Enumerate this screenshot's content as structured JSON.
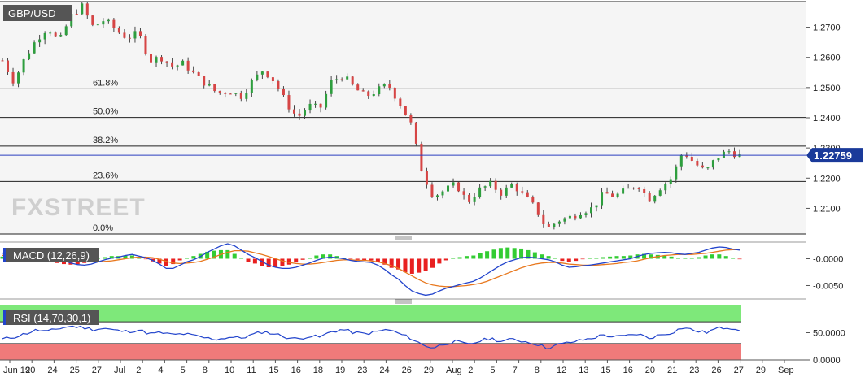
{
  "chart_data": {
    "type": "candlestick",
    "title": "GBP/USD",
    "watermark": "FXSTREET",
    "current_price": "1.22759",
    "price_axis": {
      "ylim": [
        1.2015,
        1.2785
      ],
      "ticks": [
        "1.2700",
        "1.2600",
        "1.2500",
        "1.2400",
        "1.2300",
        "1.2200",
        "1.2100"
      ]
    },
    "x_labels": [
      "Jun 19",
      "20",
      "24",
      "25",
      "27",
      "Jul",
      "2",
      "4",
      "5",
      "8",
      "10",
      "11",
      "15",
      "16",
      "18",
      "19",
      "23",
      "24",
      "26",
      "29",
      "Aug",
      "2",
      "5",
      "7",
      "8",
      "12",
      "13",
      "15",
      "16",
      "20",
      "21",
      "23",
      "26",
      "27",
      "29",
      "Sep"
    ],
    "fibonacci": [
      {
        "label": "61.8%",
        "value": 1.2496
      },
      {
        "label": "50.0%",
        "value": 1.2401
      },
      {
        "label": "38.2%",
        "value": 1.2306
      },
      {
        "label": "23.6%",
        "value": 1.2189
      },
      {
        "label": "0.0%",
        "value": 1.2015
      }
    ],
    "price_close_path": [
      1.259,
      1.252,
      1.26,
      1.266,
      1.27,
      1.265,
      1.2735,
      1.277,
      1.27,
      1.2725,
      1.269,
      1.2665,
      1.268,
      1.259,
      1.26,
      1.257,
      1.258,
      1.254,
      1.251,
      1.248,
      1.249,
      1.247,
      1.252,
      1.256,
      1.252,
      1.245,
      1.24,
      1.244,
      1.243,
      1.252,
      1.254,
      1.25,
      1.247,
      1.249,
      1.251,
      1.245,
      1.238,
      1.222,
      1.214,
      1.216,
      1.218,
      1.212,
      1.216,
      1.218,
      1.215,
      1.218,
      1.214,
      1.21,
      1.203,
      1.206,
      1.207,
      1.209,
      1.21,
      1.215,
      1.214,
      1.216,
      1.218,
      1.213,
      1.217,
      1.22,
      1.229,
      1.225,
      1.222,
      1.227,
      1.229,
      1.22759
    ],
    "macd": {
      "label": "MACD (12,26,9)",
      "ylim": [
        -0.0072,
        0.0028
      ],
      "ticks": [
        "-0.0000",
        "-0.0050"
      ],
      "macd_line": [
        0.001,
        0.0015,
        0.0018,
        0.0019,
        0.0018,
        0.0016,
        0.0012,
        0.0006,
        0.0002,
        -0.0003,
        -0.0008,
        -0.0011,
        -0.0012,
        -0.001,
        -0.0006,
        -0.0002,
        0.0001,
        0.0003,
        0.0006,
        0.0008,
        0.0005,
        0.0002,
        -0.0003,
        -0.001,
        -0.0018,
        -0.0018,
        -0.0012,
        -0.0006,
        -0.0002,
        0.0004,
        0.0012,
        0.0018,
        0.0024,
        0.0028,
        0.0024,
        0.0016,
        0.0008,
        0.0002,
        -0.0005,
        -0.0012,
        -0.0016,
        -0.0018,
        -0.0018,
        -0.0016,
        -0.0012,
        -0.0008,
        -0.0003,
        0.0001,
        0.0003,
        0.0002,
        0.0,
        -0.0003,
        -0.0005,
        -0.0006,
        -0.0007,
        -0.0012,
        -0.002,
        -0.003,
        -0.0038,
        -0.005,
        -0.006,
        -0.0065,
        -0.0068,
        -0.0066,
        -0.006,
        -0.0055,
        -0.0052,
        -0.0048,
        -0.0045,
        -0.0042,
        -0.0036,
        -0.0028,
        -0.002,
        -0.0012,
        -0.0006,
        -0.0002,
        0.0002,
        0.0003,
        0.0002,
        0.0,
        -0.0002,
        -0.0006,
        -0.0012,
        -0.0016,
        -0.0015,
        -0.0013,
        -0.0012,
        -0.001,
        -0.0008,
        -0.0006,
        -0.0004,
        -0.0002,
        0.0,
        0.0004,
        0.0008,
        0.001,
        0.0011,
        0.0012,
        0.0011,
        0.0009,
        0.0008,
        0.001,
        0.0012,
        0.0016,
        0.002,
        0.0022,
        0.0021,
        0.0018,
        0.0016
      ],
      "signal_line": [
        0.0006,
        0.0008,
        0.0011,
        0.0013,
        0.0015,
        0.0015,
        0.0014,
        0.0012,
        0.001,
        0.0007,
        0.0003,
        -0.0001,
        -0.0004,
        -0.0006,
        -0.0006,
        -0.0005,
        -0.0004,
        -0.0002,
        0.0,
        0.0002,
        0.0003,
        0.0003,
        0.0002,
        -0.0001,
        -0.0005,
        -0.0008,
        -0.0009,
        -0.0008,
        -0.0007,
        -0.0005,
        -0.0001,
        0.0003,
        0.0008,
        0.0012,
        0.0015,
        0.0015,
        0.0014,
        0.0011,
        0.0008,
        0.0004,
        0.0,
        -0.0004,
        -0.0007,
        -0.0009,
        -0.001,
        -0.001,
        -0.0009,
        -0.0007,
        -0.0005,
        -0.0003,
        -0.0002,
        -0.0002,
        -0.0003,
        -0.0003,
        -0.0004,
        -0.0006,
        -0.0009,
        -0.0013,
        -0.0018,
        -0.0025,
        -0.0032,
        -0.0039,
        -0.0045,
        -0.0049,
        -0.0051,
        -0.0052,
        -0.0052,
        -0.0051,
        -0.005,
        -0.0048,
        -0.0046,
        -0.0042,
        -0.0037,
        -0.0032,
        -0.0027,
        -0.0022,
        -0.0017,
        -0.0013,
        -0.001,
        -0.0008,
        -0.0007,
        -0.0007,
        -0.0008,
        -0.001,
        -0.0011,
        -0.0012,
        -0.0012,
        -0.0012,
        -0.0011,
        -0.001,
        -0.0009,
        -0.0007,
        -0.0006,
        -0.0004,
        -0.0001,
        0.0002,
        0.0004,
        0.0006,
        0.0007,
        0.0008,
        0.0008,
        0.0008,
        0.0009,
        0.001,
        0.0012,
        0.0014,
        0.0016,
        0.0017,
        0.0017
      ]
    },
    "rsi": {
      "label": "RSI (14,70,30,1)",
      "ylim": [
        0,
        100
      ],
      "overbought": 70,
      "oversold": 30,
      "ticks": [
        "50.0000",
        "0.0000"
      ],
      "values": [
        38,
        42,
        48,
        55,
        52,
        58,
        62,
        60,
        56,
        58,
        54,
        52,
        55,
        48,
        50,
        46,
        48,
        44,
        40,
        38,
        42,
        40,
        46,
        52,
        48,
        42,
        38,
        44,
        42,
        52,
        56,
        50,
        48,
        52,
        56,
        48,
        40,
        28,
        22,
        30,
        34,
        28,
        34,
        40,
        34,
        38,
        34,
        30,
        22,
        28,
        32,
        36,
        40,
        46,
        42,
        44,
        48,
        40,
        46,
        50,
        60,
        54,
        50,
        58,
        60,
        56
      ]
    }
  }
}
